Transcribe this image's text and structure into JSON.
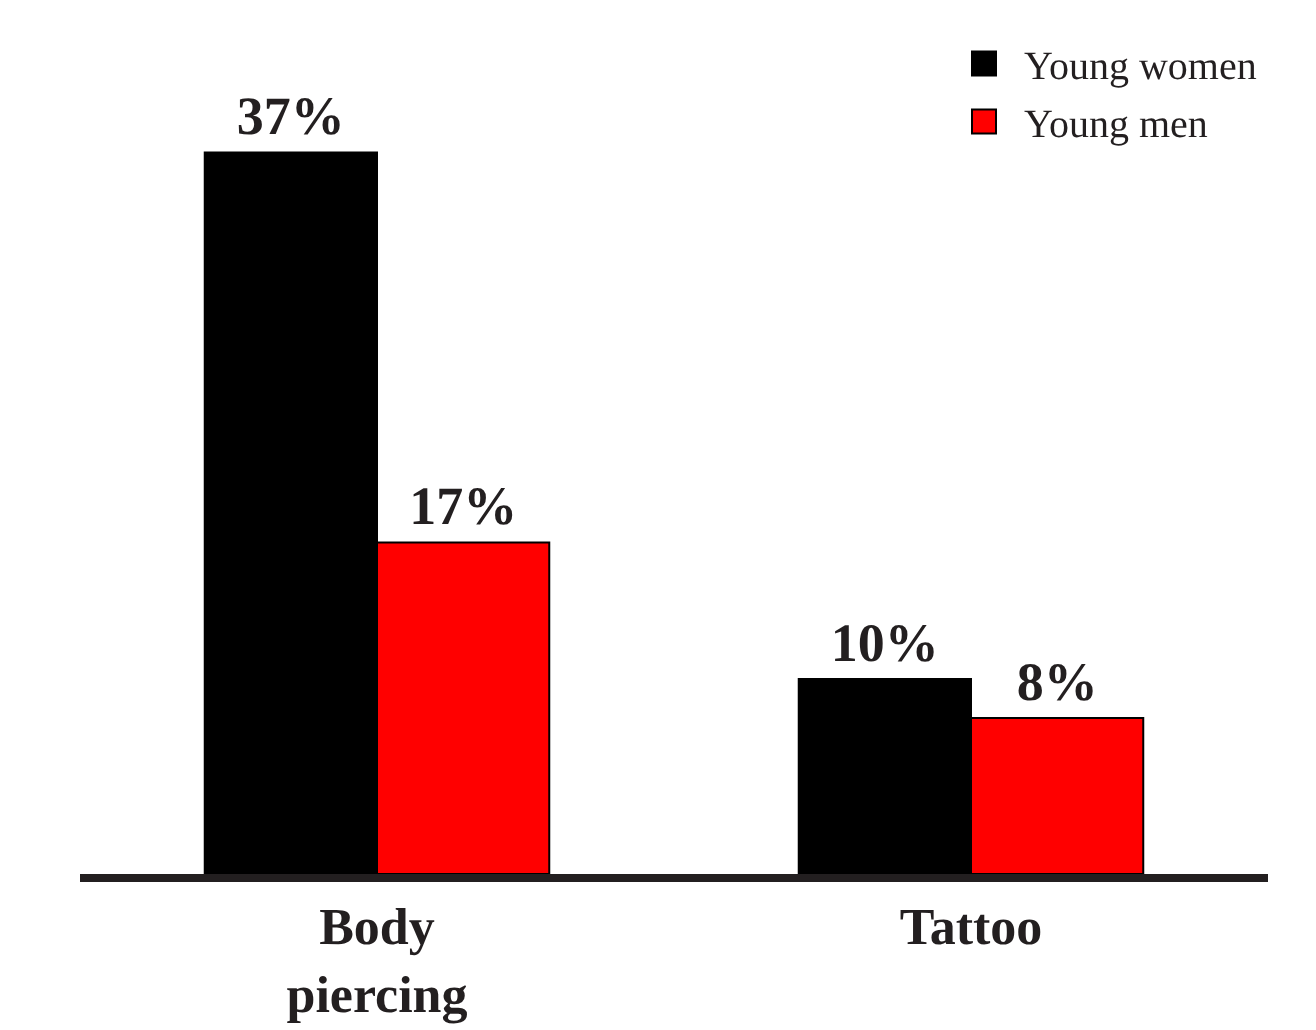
{
  "chart_data": {
    "type": "bar",
    "categories": [
      "Body\npiercing",
      "Tattoo"
    ],
    "series": [
      {
        "name": "Young women",
        "color": "#000000",
        "values": [
          37,
          10
        ],
        "value_labels": [
          "37%",
          "10%"
        ]
      },
      {
        "name": "Young men",
        "color": "#ff0000",
        "values": [
          17,
          8
        ],
        "value_labels": [
          "17%",
          "8%"
        ]
      }
    ],
    "legend": "top right",
    "tick_labels": "x"
  }
}
